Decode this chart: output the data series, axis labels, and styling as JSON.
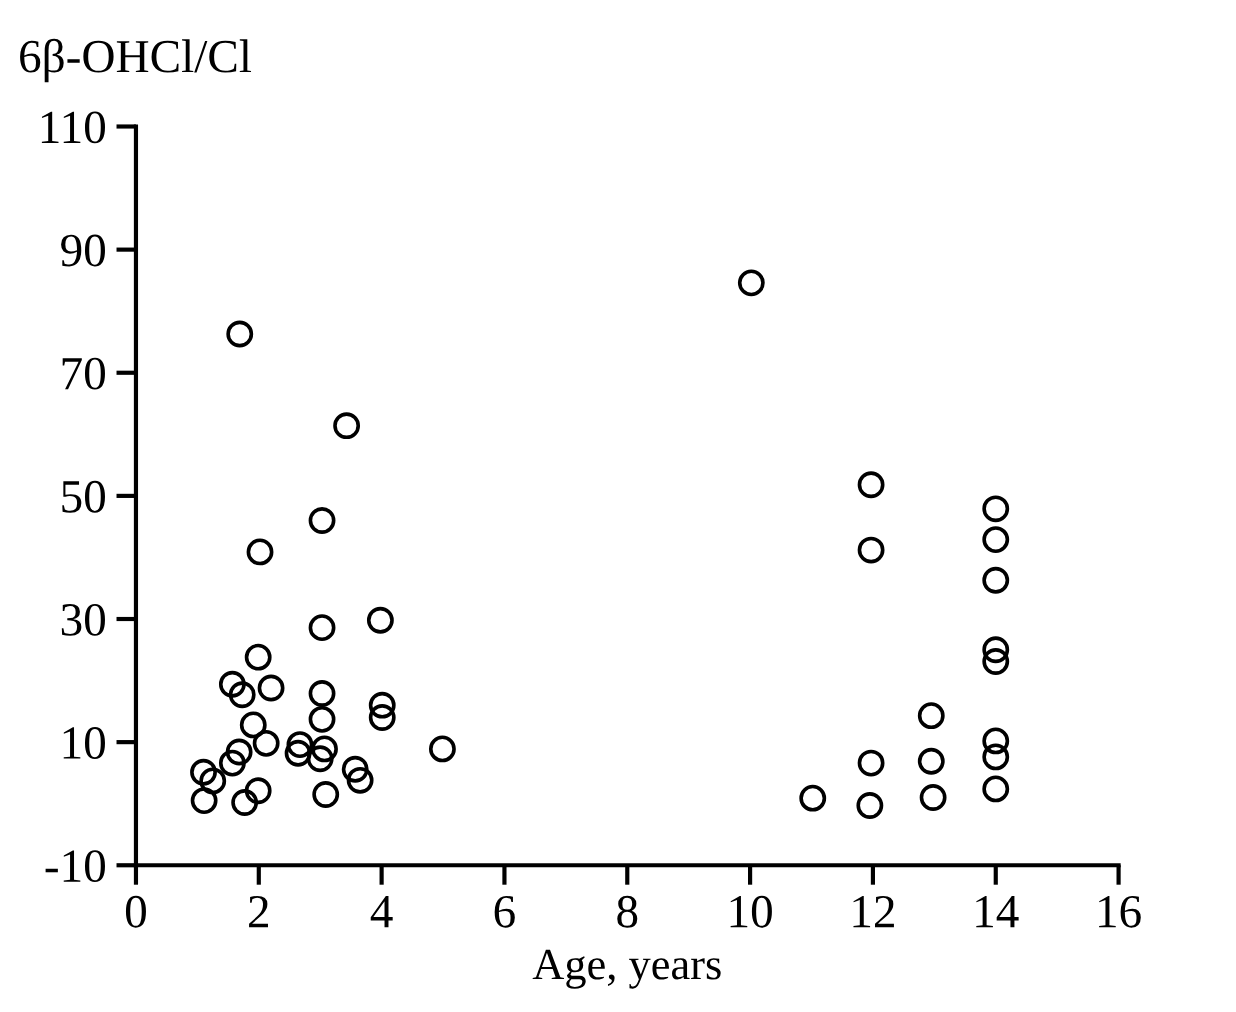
{
  "chart_data": {
    "type": "scatter",
    "ylabel": "6β-OHCl/Cl",
    "xlabel": "Age, years",
    "x": [
      1.1,
      1.25,
      1.11,
      1.57,
      1.68,
      1.57,
      1.73,
      1.69,
      1.77,
      1.91,
      1.99,
      1.99,
      2.02,
      2.12,
      2.2,
      2.64,
      2.67,
      3.03,
      3.03,
      3.03,
      3.03,
      3.07,
      3.0,
      3.09,
      3.43,
      3.57,
      3.65,
      3.98,
      4.01,
      4.01,
      4.99,
      10.02,
      11.02,
      11.97,
      11.97,
      11.97,
      11.95,
      12.95,
      12.95,
      12.98,
      14.0,
      14.0,
      14.0,
      14.0,
      14.0,
      14.0,
      14.0,
      14.0
    ],
    "values": [
      5.1,
      3.7,
      0.5,
      6.6,
      8.4,
      19.4,
      17.7,
      76.3,
      0.2,
      12.8,
      2.1,
      23.8,
      40.9,
      9.8,
      18.8,
      8.2,
      9.6,
      46.0,
      28.6,
      17.9,
      13.7,
      8.9,
      7.3,
      1.5,
      61.4,
      5.6,
      3.8,
      29.8,
      16.0,
      14.0,
      8.9,
      84.6,
      0.9,
      51.8,
      41.2,
      6.6,
      -0.3,
      14.3,
      6.9,
      1.0,
      47.9,
      42.9,
      36.3,
      25.0,
      23.1,
      10.2,
      7.6,
      2.4
    ],
    "color": "#000000",
    "marker": "circle",
    "xlim": [
      0,
      16
    ],
    "xticks": [
      0,
      2,
      4,
      6,
      8,
      10,
      12,
      14,
      16
    ],
    "ylim": [
      -10,
      110
    ],
    "yticks": [
      -10,
      10,
      30,
      50,
      70,
      90,
      110
    ],
    "grid": false,
    "legend": false
  }
}
